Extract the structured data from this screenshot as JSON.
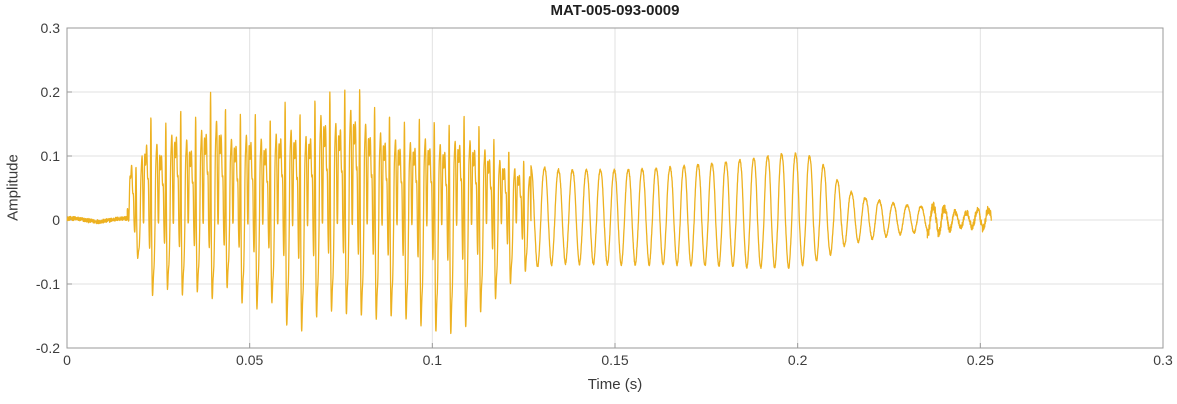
{
  "chart_data": {
    "type": "line",
    "title": "MAT-005-093-0009",
    "xlabel": "Time (s)",
    "ylabel": "Amplitude",
    "xlim": [
      0,
      0.3
    ],
    "ylim": [
      -0.2,
      0.3
    ],
    "grid": true,
    "legend": "none",
    "line_color": "#EDB120",
    "x_ticks": {
      "values": [
        0,
        0.05,
        0.1,
        0.15,
        0.2,
        0.25,
        0.3
      ],
      "labels": [
        "0",
        "0.05",
        "0.1",
        "0.15",
        "0.2",
        "0.25",
        "0.3"
      ]
    },
    "y_ticks": {
      "values": [
        -0.2,
        -0.1,
        0,
        0.1,
        0.2,
        0.3
      ],
      "labels": [
        "-0.2",
        "-0.1",
        "0",
        "0.1",
        "0.2",
        "0.3"
      ]
    },
    "description": "Audio waveform of a short speech-like signal: near-silence until ~0.017 s, a loud complex voiced burst from ~0.017-0.127 s with spike peaks up to +0.22 and troughs to -0.18, a regular tonal oscillation (~260 Hz) from ~0.127-0.212 s with peaks rising to ~0.105, a decay from ~0.212-0.235 s, and a small noisy tail ending at ~0.253 s.",
    "waveform": {
      "sample_step": 5e-05,
      "end_time": 0.253,
      "harmonics": {
        "amps": [
          1,
          0.55,
          0.75,
          0.3,
          0.42,
          0.22,
          0.28
        ],
        "phases": [
          0,
          1.3,
          2.2,
          4.1,
          0.6,
          2.8,
          5.2
        ]
      },
      "tone_harmonics": {
        "amps": [
          1,
          0.12
        ],
        "phases": [
          0,
          1.57
        ]
      },
      "segments": [
        {
          "name": "lead-in-silence",
          "type": "noise",
          "t0": 0,
          "t1": 0.0165,
          "amp": 0.004,
          "f": 70
        },
        {
          "name": "voiced-burst",
          "type": "complex",
          "t0": 0.0165,
          "t1": 0.127,
          "f0": 245,
          "pos_env": [
            [
              0.0165,
              0.02
            ],
            [
              0.0175,
              0.125
            ],
            [
              0.019,
              0.08
            ],
            [
              0.022,
              0.17
            ],
            [
              0.026,
              0.14
            ],
            [
              0.03,
              0.18
            ],
            [
              0.034,
              0.15
            ],
            [
              0.04,
              0.205
            ],
            [
              0.045,
              0.16
            ],
            [
              0.05,
              0.17
            ],
            [
              0.055,
              0.155
            ],
            [
              0.06,
              0.185
            ],
            [
              0.065,
              0.16
            ],
            [
              0.07,
              0.21
            ],
            [
              0.074,
              0.19
            ],
            [
              0.078,
              0.22
            ],
            [
              0.083,
              0.18
            ],
            [
              0.088,
              0.165
            ],
            [
              0.093,
              0.15
            ],
            [
              0.098,
              0.16
            ],
            [
              0.104,
              0.145
            ],
            [
              0.108,
              0.165
            ],
            [
              0.112,
              0.15
            ],
            [
              0.118,
              0.12
            ],
            [
              0.123,
              0.1
            ],
            [
              0.127,
              0.085
            ]
          ],
          "neg_env": [
            [
              0.0165,
              0.02
            ],
            [
              0.0175,
              0.06
            ],
            [
              0.019,
              0.05
            ],
            [
              0.022,
              0.13
            ],
            [
              0.026,
              0.1
            ],
            [
              0.03,
              0.12
            ],
            [
              0.035,
              0.11
            ],
            [
              0.04,
              0.125
            ],
            [
              0.045,
              0.1
            ],
            [
              0.05,
              0.15
            ],
            [
              0.055,
              0.12
            ],
            [
              0.06,
              0.165
            ],
            [
              0.065,
              0.175
            ],
            [
              0.07,
              0.14
            ],
            [
              0.075,
              0.145
            ],
            [
              0.08,
              0.15
            ],
            [
              0.085,
              0.155
            ],
            [
              0.09,
              0.15
            ],
            [
              0.095,
              0.16
            ],
            [
              0.103,
              0.18
            ],
            [
              0.108,
              0.175
            ],
            [
              0.112,
              0.15
            ],
            [
              0.118,
              0.12
            ],
            [
              0.123,
              0.09
            ],
            [
              0.127,
              0.075
            ]
          ]
        },
        {
          "name": "voiced-tonal",
          "type": "tone",
          "t0": 0.127,
          "t1": 0.212,
          "f0": 262,
          "pos_env": [
            [
              0.127,
              0.085
            ],
            [
              0.135,
              0.078
            ],
            [
              0.15,
              0.078
            ],
            [
              0.165,
              0.082
            ],
            [
              0.18,
              0.09
            ],
            [
              0.19,
              0.098
            ],
            [
              0.198,
              0.105
            ],
            [
              0.205,
              0.098
            ],
            [
              0.212,
              0.055
            ]
          ],
          "neg_env": [
            [
              0.127,
              0.075
            ],
            [
              0.135,
              0.068
            ],
            [
              0.15,
              0.07
            ],
            [
              0.165,
              0.07
            ],
            [
              0.18,
              0.072
            ],
            [
              0.19,
              0.075
            ],
            [
              0.198,
              0.075
            ],
            [
              0.205,
              0.065
            ],
            [
              0.212,
              0.045
            ]
          ]
        },
        {
          "name": "decay",
          "type": "tone",
          "t0": 0.212,
          "t1": 0.2355,
          "f0": 262,
          "pos_env": [
            [
              0.212,
              0.05
            ],
            [
              0.218,
              0.035
            ],
            [
              0.225,
              0.027
            ],
            [
              0.231,
              0.022
            ],
            [
              0.2355,
              0.02
            ]
          ],
          "neg_env": [
            [
              0.212,
              0.042
            ],
            [
              0.218,
              0.032
            ],
            [
              0.225,
              0.025
            ],
            [
              0.231,
              0.02
            ],
            [
              0.2355,
              0.018
            ]
          ]
        },
        {
          "name": "tail-noise",
          "type": "noisy-tone",
          "t0": 0.2355,
          "t1": 0.253,
          "f0": 330,
          "pos_env": [
            [
              0.2355,
              0.028
            ],
            [
              0.239,
              0.03
            ],
            [
              0.242,
              0.018
            ],
            [
              0.246,
              0.015
            ],
            [
              0.249,
              0.02
            ],
            [
              0.2515,
              0.025
            ],
            [
              0.253,
              0.02
            ]
          ],
          "neg_env": [
            [
              0.2355,
              0.03
            ],
            [
              0.239,
              0.028
            ],
            [
              0.242,
              0.02
            ],
            [
              0.246,
              0.015
            ],
            [
              0.249,
              0.015
            ],
            [
              0.2515,
              0.02
            ],
            [
              0.253,
              0.018
            ]
          ]
        }
      ]
    }
  },
  "colors": {
    "line": "#EDB120",
    "grid": "#e2e2e2",
    "box": "#9a9a9a",
    "tick_text": "#3d3d3d",
    "title_text": "#1f1f1f"
  }
}
